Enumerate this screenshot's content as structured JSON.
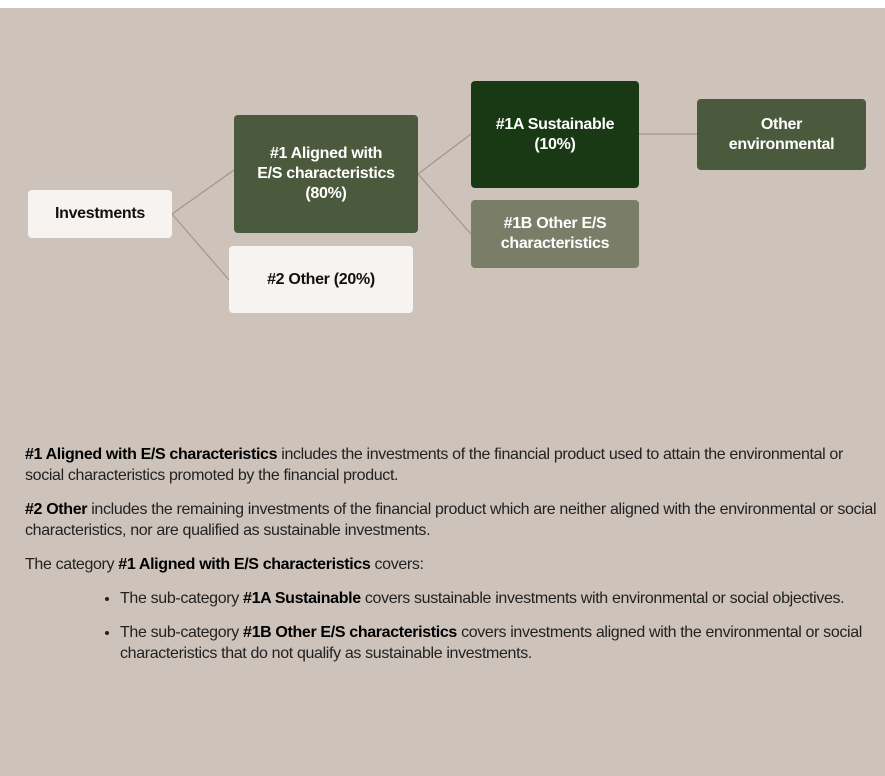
{
  "nodes": [
    {
      "lines": [
        "Investments"
      ]
    },
    {
      "lines": [
        "#1 Aligned with",
        "E/S characteristics",
        "(80%)"
      ]
    },
    {
      "lines": [
        "#2 Other (20%)"
      ]
    },
    {
      "lines": [
        "#1A Sustainable",
        "(10%)"
      ]
    },
    {
      "lines": [
        "#1B Other E/S",
        "characteristics"
      ]
    },
    {
      "lines": [
        "Other",
        "environmental"
      ]
    }
  ],
  "paragraphs": [
    [
      "#1 Aligned with E/S characteristics",
      " includes the investments of the financial product used to attain the environmental or social characteristics promoted by the financial product."
    ],
    [
      "#2 Other",
      " includes the remaining investments of the financial product which are neither aligned with the environmental or social characteristics, nor are qualified as sustainable investments."
    ],
    [
      "The category ",
      "#1 Aligned with E/S characteristics",
      " covers:"
    ]
  ],
  "bullets": [
    [
      "The sub-category ",
      "#1A Sustainable",
      " covers sustainable investments with environmental or social objectives."
    ],
    [
      "The sub-category ",
      "#1B Other E/S characteristics",
      " covers investments aligned with the environmental or social characteristics that do not qualify as sustainable investments."
    ]
  ]
}
